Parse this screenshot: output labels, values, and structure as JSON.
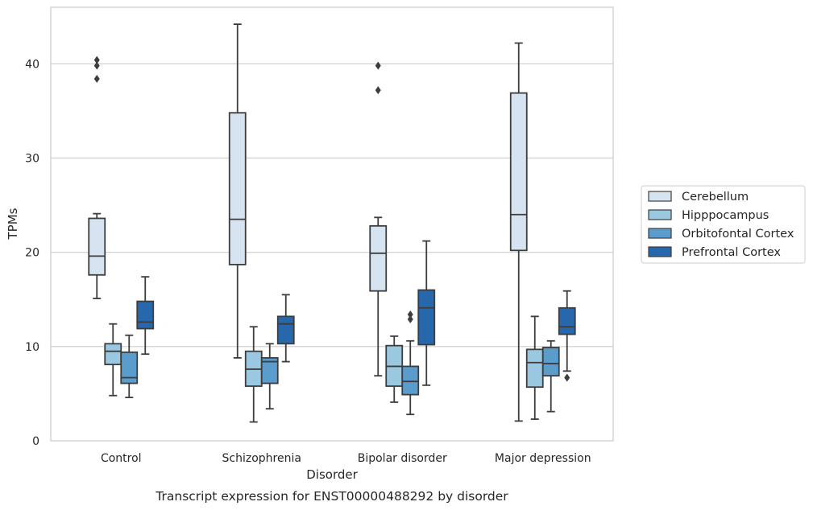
{
  "caption": "Transcript expression for ENST00000488292 by disorder",
  "chart_data": {
    "type": "box",
    "xlabel": "Disorder",
    "ylabel": "TPMs",
    "ylim": [
      0,
      46
    ],
    "yticks": [
      0,
      10,
      20,
      30,
      40
    ],
    "grid": "horizontal",
    "legend_position": "right",
    "categories": [
      "Control",
      "Schizophrenia",
      "Bipolar disorder",
      "Major depression"
    ],
    "series": [
      {
        "name": "Cerebellum",
        "color": "#d6e4f1",
        "boxes": [
          {
            "whisker_low": 15.1,
            "q1": 17.6,
            "median": 19.6,
            "q3": 23.6,
            "whisker_high": 24.1,
            "outliers": [
              38.4,
              39.8,
              40.4
            ]
          },
          {
            "whisker_low": 8.8,
            "q1": 18.7,
            "median": 23.5,
            "q3": 34.8,
            "whisker_high": 44.2,
            "outliers": []
          },
          {
            "whisker_low": 6.9,
            "q1": 15.9,
            "median": 19.9,
            "q3": 22.8,
            "whisker_high": 23.7,
            "outliers": [
              37.2,
              39.8
            ]
          },
          {
            "whisker_low": 2.1,
            "q1": 20.2,
            "median": 24.0,
            "q3": 36.9,
            "whisker_high": 42.2,
            "outliers": []
          }
        ]
      },
      {
        "name": "Hipppocampus",
        "color": "#9ac8e0",
        "boxes": [
          {
            "whisker_low": 4.8,
            "q1": 8.1,
            "median": 9.5,
            "q3": 10.3,
            "whisker_high": 12.4,
            "outliers": []
          },
          {
            "whisker_low": 2.0,
            "q1": 5.8,
            "median": 7.6,
            "q3": 9.5,
            "whisker_high": 12.1,
            "outliers": []
          },
          {
            "whisker_low": 4.1,
            "q1": 5.8,
            "median": 7.9,
            "q3": 10.1,
            "whisker_high": 11.1,
            "outliers": []
          },
          {
            "whisker_low": 2.3,
            "q1": 5.7,
            "median": 8.3,
            "q3": 9.7,
            "whisker_high": 13.2,
            "outliers": []
          }
        ]
      },
      {
        "name": "Orbitofontal Cortex",
        "color": "#5a9dcc",
        "boxes": [
          {
            "whisker_low": 4.6,
            "q1": 6.1,
            "median": 6.7,
            "q3": 9.4,
            "whisker_high": 11.2,
            "outliers": []
          },
          {
            "whisker_low": 3.4,
            "q1": 6.1,
            "median": 8.4,
            "q3": 8.8,
            "whisker_high": 10.3,
            "outliers": []
          },
          {
            "whisker_low": 2.8,
            "q1": 4.9,
            "median": 6.3,
            "q3": 7.9,
            "whisker_high": 10.6,
            "outliers": [
              12.9,
              13.4
            ]
          },
          {
            "whisker_low": 3.1,
            "q1": 6.9,
            "median": 8.2,
            "q3": 9.9,
            "whisker_high": 10.6,
            "outliers": []
          }
        ]
      },
      {
        "name": "Prefrontal Cortex",
        "color": "#2767ab",
        "boxes": [
          {
            "whisker_low": 9.2,
            "q1": 11.9,
            "median": 12.6,
            "q3": 14.8,
            "whisker_high": 17.4,
            "outliers": []
          },
          {
            "whisker_low": 8.4,
            "q1": 10.3,
            "median": 12.4,
            "q3": 13.2,
            "whisker_high": 15.5,
            "outliers": []
          },
          {
            "whisker_low": 5.9,
            "q1": 10.2,
            "median": 14.1,
            "q3": 16.0,
            "whisker_high": 21.2,
            "outliers": []
          },
          {
            "whisker_low": 7.4,
            "q1": 11.3,
            "median": 12.1,
            "q3": 14.1,
            "whisker_high": 15.9,
            "outliers": [
              6.7
            ]
          }
        ]
      }
    ]
  }
}
